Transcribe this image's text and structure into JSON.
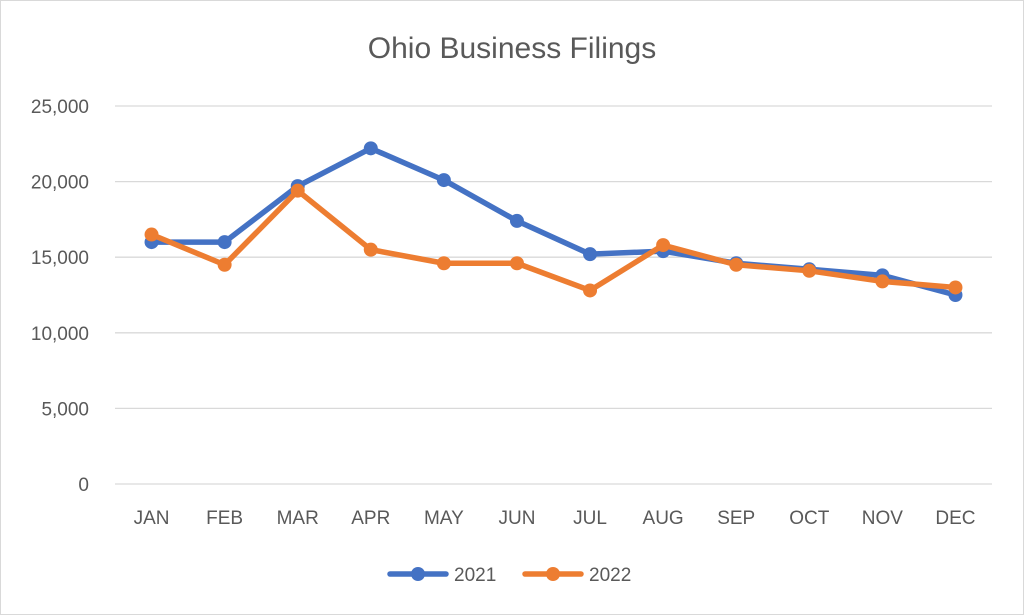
{
  "chart_data": {
    "type": "line",
    "title": "Ohio Business Filings",
    "xlabel": "",
    "ylabel": "",
    "categories": [
      "JAN",
      "FEB",
      "MAR",
      "APR",
      "MAY",
      "JUN",
      "JUL",
      "AUG",
      "SEP",
      "OCT",
      "NOV",
      "DEC"
    ],
    "y_ticks": [
      "0",
      "5,000",
      "10,000",
      "15,000",
      "20,000",
      "25,000"
    ],
    "ylim": [
      0,
      25000
    ],
    "grid": true,
    "legend_position": "bottom",
    "series": [
      {
        "name": "2021",
        "color": "#4472c4",
        "values": [
          16000,
          16000,
          19700,
          22200,
          20100,
          17400,
          15200,
          15400,
          14600,
          14200,
          13800,
          12500
        ]
      },
      {
        "name": "2022",
        "color": "#ed7d31",
        "values": [
          16500,
          14500,
          19400,
          15500,
          14600,
          14600,
          12800,
          15800,
          14500,
          14100,
          13400,
          13000
        ]
      }
    ]
  }
}
